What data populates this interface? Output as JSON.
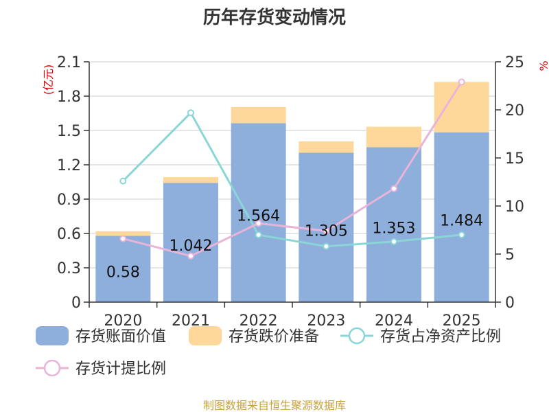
{
  "chart_data": {
    "type": "bar",
    "title": "历年存货变动情况",
    "left_axis_unit": "(亿元)",
    "right_axis_unit": "%",
    "categories": [
      "2020",
      "2021",
      "2022",
      "2023",
      "2024",
      "2025"
    ],
    "left_ylim": [
      0,
      2.1
    ],
    "left_ticks": [
      "0",
      "0.3",
      "0.6",
      "0.9",
      "1.2",
      "1.5",
      "1.8",
      "2.1"
    ],
    "right_ylim": [
      0,
      25
    ],
    "right_ticks": [
      "0",
      "5",
      "10",
      "15",
      "20",
      "25"
    ],
    "grid": true,
    "legend_position": "bottom",
    "series": [
      {
        "name": "存货账面价值",
        "kind": "bar",
        "stack": "inv",
        "axis": "left",
        "color": "#8eaedb",
        "values": [
          0.58,
          1.042,
          1.564,
          1.305,
          1.353,
          1.484
        ],
        "labels": [
          "0.58",
          "1.042",
          "1.564",
          "1.305",
          "1.353",
          "1.484"
        ]
      },
      {
        "name": "存货跌价准备",
        "kind": "bar",
        "stack": "inv",
        "axis": "left",
        "color": "#fdd89a",
        "values": [
          0.04,
          0.05,
          0.14,
          0.1,
          0.18,
          0.44
        ]
      },
      {
        "name": "存货占净资产比例",
        "kind": "line",
        "axis": "right",
        "color": "#8ad6d6",
        "values": [
          12.6,
          19.7,
          7.0,
          5.8,
          6.3,
          7.0
        ]
      },
      {
        "name": "存货计提比例",
        "kind": "line",
        "axis": "right",
        "color": "#e8b4d8",
        "values": [
          6.6,
          4.8,
          8.2,
          7.4,
          11.8,
          22.9
        ]
      }
    ],
    "source": "制图数据来自恒生聚源数据库"
  }
}
